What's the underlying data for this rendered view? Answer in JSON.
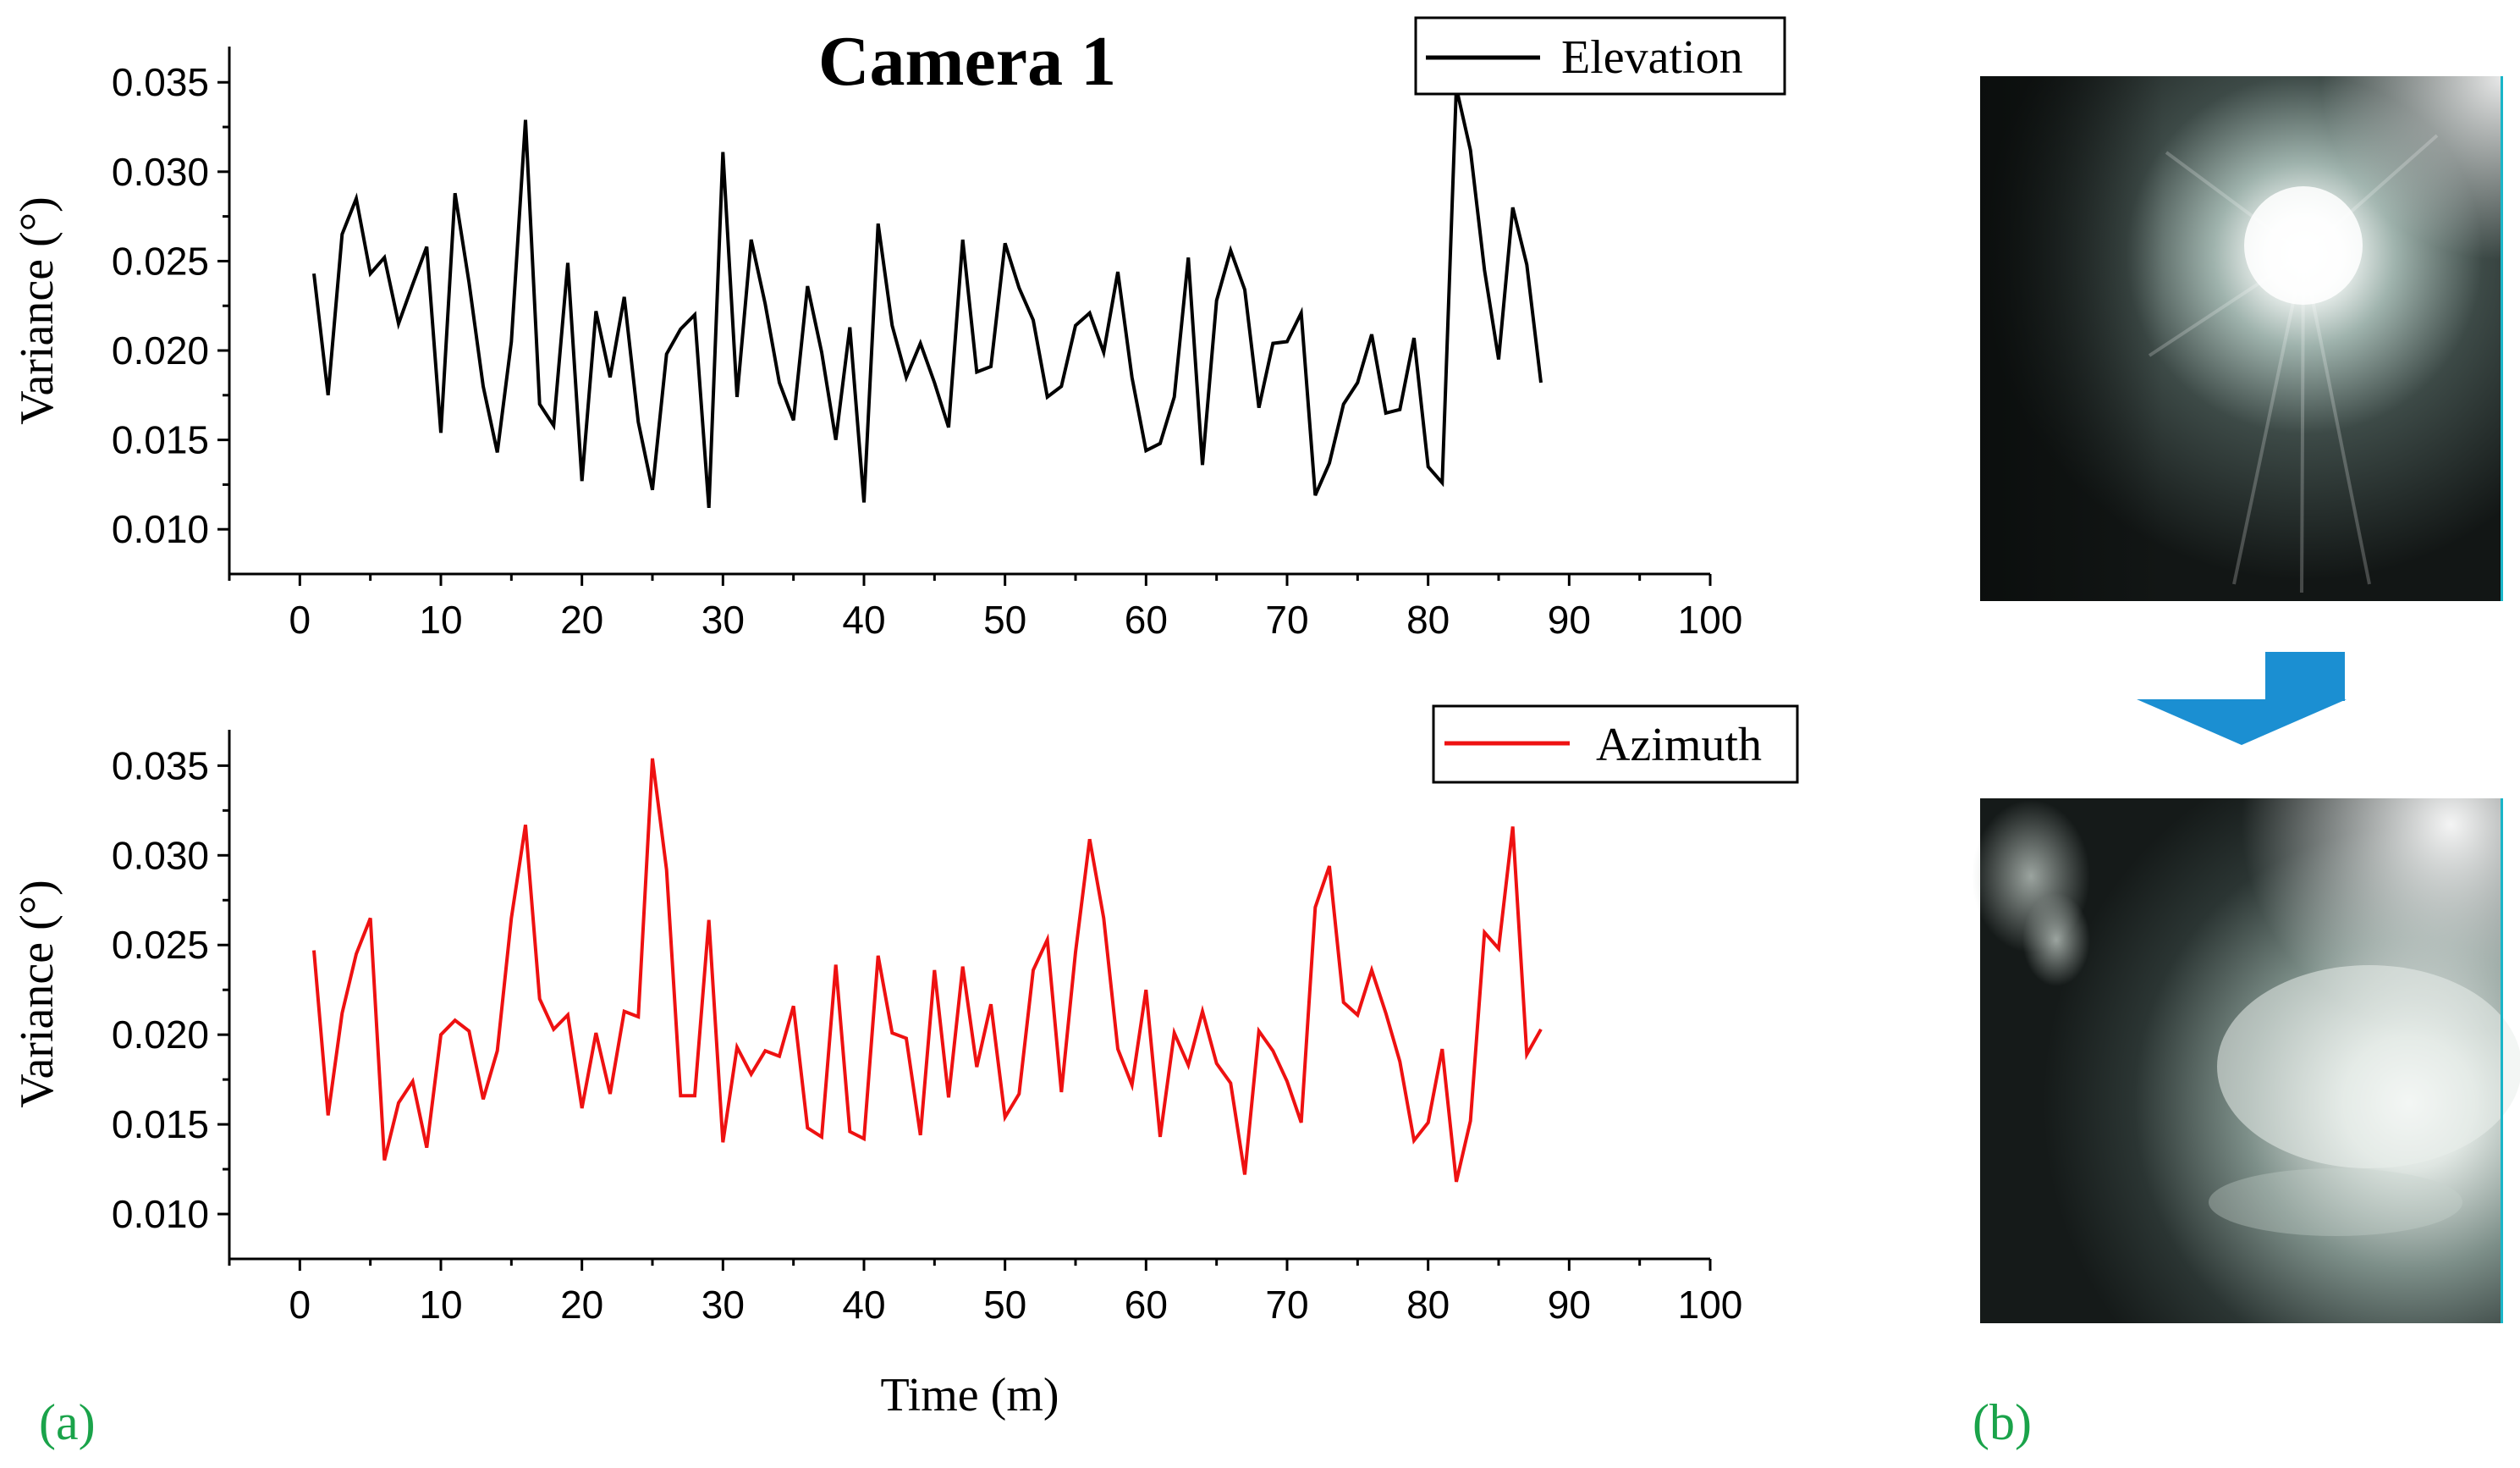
{
  "panel_labels": {
    "a": "(a)",
    "b": "(b)"
  },
  "colors": {
    "panel_label": "#1aa34a",
    "arrow": "#1b8fd2",
    "elevation": "#000000",
    "azimuth": "#ee1111"
  },
  "chart_data": [
    {
      "type": "line",
      "title": "Camera 1",
      "xlabel": "",
      "ylabel": "Variance (°)",
      "xlim": [
        -5,
        100
      ],
      "ylim": [
        0.0075,
        0.037
      ],
      "xticks": [
        0,
        10,
        20,
        30,
        40,
        50,
        60,
        70,
        80,
        90,
        100
      ],
      "xtick_labels": [
        "0",
        "10",
        "20",
        "30",
        "40",
        "50",
        "60",
        "70",
        "80",
        "90",
        "100"
      ],
      "yticks": [
        0.01,
        0.015,
        0.02,
        0.025,
        0.03,
        0.035
      ],
      "ytick_labels": [
        "0.010",
        "0.015",
        "0.020",
        "0.025",
        "0.030",
        "0.035"
      ],
      "legend_position": "top-right",
      "series": [
        {
          "name": "Elevation",
          "color": "#000000",
          "x": [
            1,
            2,
            3,
            4,
            5,
            6,
            7,
            8,
            9,
            10,
            11,
            12,
            13,
            14,
            15,
            16,
            17,
            18,
            19,
            20,
            21,
            22,
            23,
            24,
            25,
            26,
            27,
            28,
            29,
            30,
            31,
            32,
            33,
            34,
            35,
            36,
            37,
            38,
            39,
            40,
            41,
            42,
            43,
            44,
            45,
            46,
            47,
            48,
            49,
            50,
            51,
            52,
            53,
            54,
            55,
            56,
            57,
            58,
            59,
            60,
            61,
            62,
            63,
            64,
            65,
            66,
            67,
            68,
            69,
            70,
            71,
            72,
            73,
            74,
            75,
            76,
            77,
            78,
            79,
            80,
            81,
            82,
            83,
            84,
            85,
            86,
            87,
            88
          ],
          "values": [
            0.0243,
            0.0175,
            0.0265,
            0.0285,
            0.0243,
            0.0252,
            0.0215,
            0.0237,
            0.0258,
            0.0154,
            0.0288,
            0.0238,
            0.018,
            0.0143,
            0.0205,
            0.0329,
            0.017,
            0.0158,
            0.0249,
            0.0127,
            0.0222,
            0.0185,
            0.023,
            0.016,
            0.0122,
            0.0198,
            0.0212,
            0.022,
            0.0112,
            0.0311,
            0.0174,
            0.0262,
            0.0226,
            0.0182,
            0.0161,
            0.0236,
            0.0199,
            0.015,
            0.0213,
            0.0115,
            0.0271,
            0.0214,
            0.0185,
            0.0204,
            0.0182,
            0.0157,
            0.0262,
            0.0188,
            0.0191,
            0.026,
            0.0235,
            0.0217,
            0.0174,
            0.018,
            0.0214,
            0.0221,
            0.0199,
            0.0244,
            0.0185,
            0.0144,
            0.0148,
            0.0174,
            0.0252,
            0.0136,
            0.0228,
            0.0256,
            0.0234,
            0.0168,
            0.0204,
            0.0205,
            0.0221,
            0.0119,
            0.0137,
            0.017,
            0.0182,
            0.0209,
            0.0165,
            0.0167,
            0.0207,
            0.0135,
            0.0126,
            0.0347,
            0.0312,
            0.0245,
            0.0195,
            0.028,
            0.0248,
            0.0182
          ]
        }
      ]
    },
    {
      "type": "line",
      "title": "",
      "xlabel": "Time (m)",
      "ylabel": "Variance (°)",
      "xlim": [
        -5,
        100
      ],
      "ylim": [
        0.0075,
        0.037
      ],
      "xticks": [
        0,
        10,
        20,
        30,
        40,
        50,
        60,
        70,
        80,
        90,
        100
      ],
      "xtick_labels": [
        "0",
        "10",
        "20",
        "30",
        "40",
        "50",
        "60",
        "70",
        "80",
        "90",
        "100"
      ],
      "yticks": [
        0.01,
        0.015,
        0.02,
        0.025,
        0.03,
        0.035
      ],
      "ytick_labels": [
        "0.010",
        "0.015",
        "0.020",
        "0.025",
        "0.030",
        "0.035"
      ],
      "legend_position": "top-right",
      "series": [
        {
          "name": "Azimuth",
          "color": "#ee1111",
          "x": [
            1,
            2,
            3,
            4,
            5,
            6,
            7,
            8,
            9,
            10,
            11,
            12,
            13,
            14,
            15,
            16,
            17,
            18,
            19,
            20,
            21,
            22,
            23,
            24,
            25,
            26,
            27,
            28,
            29,
            30,
            31,
            32,
            33,
            34,
            35,
            36,
            37,
            38,
            39,
            40,
            41,
            42,
            43,
            44,
            45,
            46,
            47,
            48,
            49,
            50,
            51,
            52,
            53,
            54,
            55,
            56,
            57,
            58,
            59,
            60,
            61,
            62,
            63,
            64,
            65,
            66,
            67,
            68,
            69,
            70,
            71,
            72,
            73,
            74,
            75,
            76,
            77,
            78,
            79,
            80,
            81,
            82,
            83,
            84,
            85,
            86,
            87,
            88
          ],
          "values": [
            0.0247,
            0.0155,
            0.0212,
            0.0245,
            0.0265,
            0.013,
            0.0162,
            0.0174,
            0.0137,
            0.02,
            0.0208,
            0.0202,
            0.0164,
            0.0191,
            0.0265,
            0.0317,
            0.022,
            0.0203,
            0.0211,
            0.0159,
            0.0201,
            0.0167,
            0.0213,
            0.021,
            0.0354,
            0.0292,
            0.0166,
            0.0166,
            0.0264,
            0.014,
            0.0193,
            0.0178,
            0.0191,
            0.0188,
            0.0216,
            0.0148,
            0.0143,
            0.0239,
            0.0146,
            0.0142,
            0.0244,
            0.0201,
            0.0198,
            0.0144,
            0.0236,
            0.0165,
            0.0238,
            0.0182,
            0.0217,
            0.0154,
            0.0167,
            0.0236,
            0.0253,
            0.0168,
            0.0246,
            0.0309,
            0.0265,
            0.0192,
            0.0172,
            0.0225,
            0.0143,
            0.0201,
            0.0183,
            0.0213,
            0.0184,
            0.0173,
            0.0122,
            0.0202,
            0.0191,
            0.0174,
            0.0151,
            0.0271,
            0.0294,
            0.0218,
            0.0211,
            0.0236,
            0.0212,
            0.0185,
            0.0141,
            0.0151,
            0.0192,
            0.0118,
            0.0152,
            0.0257,
            0.0248,
            0.0316,
            0.0189,
            0.0203
          ]
        }
      ]
    }
  ]
}
